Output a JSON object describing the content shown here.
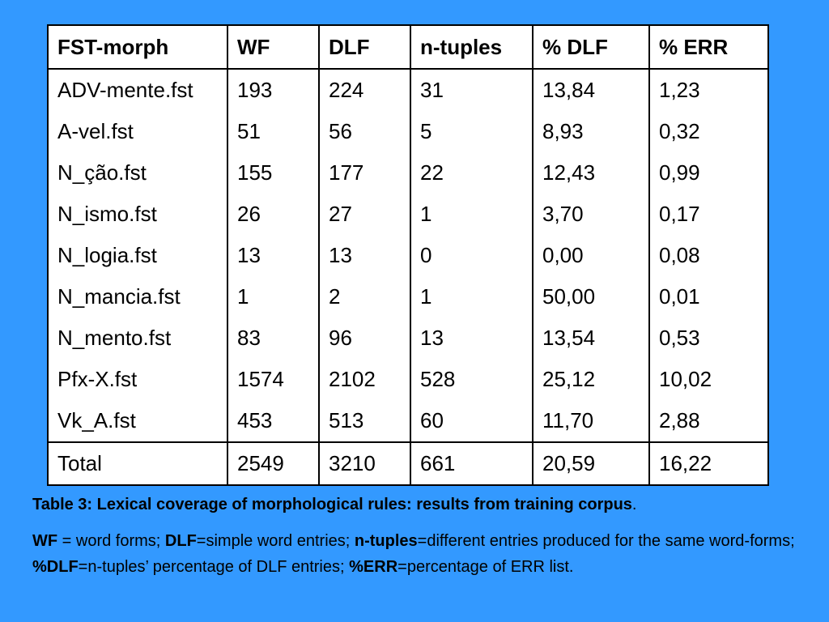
{
  "table": {
    "headers": [
      "FST-morph",
      "WF",
      "DLF",
      "n-tuples",
      "% DLF",
      "% ERR"
    ],
    "rows": [
      [
        "ADV-mente.fst",
        "193",
        "224",
        "31",
        "13,84",
        "1,23"
      ],
      [
        "A-vel.fst",
        "51",
        "56",
        "5",
        "8,93",
        "0,32"
      ],
      [
        "N_ção.fst",
        "155",
        "177",
        "22",
        "12,43",
        "0,99"
      ],
      [
        "N_ismo.fst",
        "26",
        "27",
        "1",
        "3,70",
        "0,17"
      ],
      [
        "N_logia.fst",
        "13",
        "13",
        "0",
        "0,00",
        "0,08"
      ],
      [
        "N_mancia.fst",
        "1",
        "2",
        "1",
        "50,00",
        "0,01"
      ],
      [
        "N_mento.fst",
        "83",
        "96",
        "13",
        "13,54",
        "0,53"
      ],
      [
        "Pfx-X.fst",
        "1574",
        "2102",
        "528",
        "25,12",
        "10,02"
      ],
      [
        "Vk_A.fst",
        "453",
        "513",
        "60",
        "11,70",
        "2,88"
      ]
    ],
    "total": [
      "Total",
      "2549",
      "3210",
      "661",
      "20,59",
      "16,22"
    ]
  },
  "caption": {
    "text": "Table 3: Lexical coverage of morphological rules: results from training corpus",
    "end": "."
  },
  "note": {
    "wf_term": "WF",
    "wf_def": " = word forms; ",
    "dlf_term": "DLF",
    "dlf_def": "=simple word entries; ",
    "ntuples_term": "n-tuples",
    "ntuples_def": "=different entries produced for the same word-forms; ",
    "pdlf_term": "%DLF",
    "pdlf_def": "=n-tuples’ percentage of DLF entries; ",
    "perr_term": "%ERR",
    "perr_def": "=percentage of ERR list."
  },
  "colors": {
    "background": "#3399ff",
    "table_bg": "#ffffff"
  }
}
